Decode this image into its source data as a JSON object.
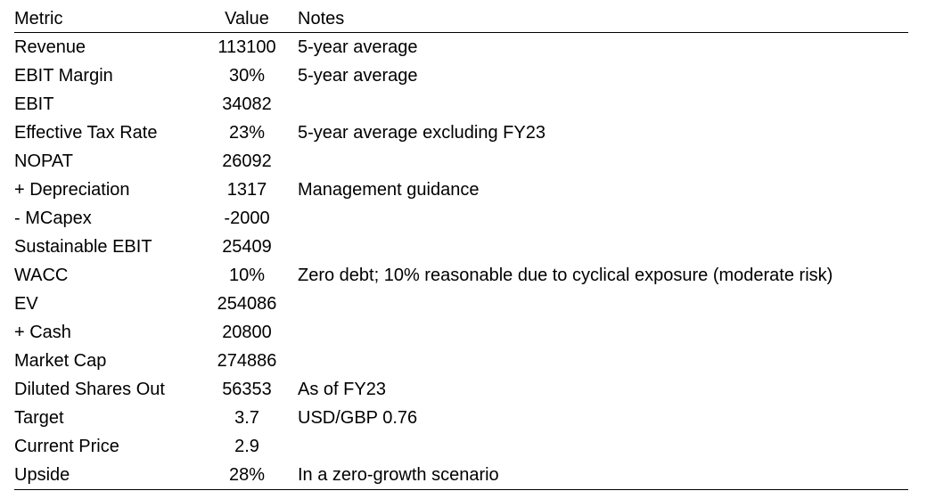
{
  "table": {
    "headers": {
      "metric": "Metric",
      "value": "Value",
      "notes": "Notes"
    },
    "rows": [
      {
        "metric": "Revenue",
        "value": "113100",
        "notes": "5-year average"
      },
      {
        "metric": "EBIT Margin",
        "value": "30%",
        "notes": "5-year average"
      },
      {
        "metric": "EBIT",
        "value": "34082",
        "notes": ""
      },
      {
        "metric": "Effective Tax Rate",
        "value": "23%",
        "notes": "5-year average excluding FY23"
      },
      {
        "metric": "NOPAT",
        "value": "26092",
        "notes": ""
      },
      {
        "metric": "+ Depreciation",
        "value": "1317",
        "notes": "Management guidance"
      },
      {
        "metric": "- MCapex",
        "value": "-2000",
        "notes": ""
      },
      {
        "metric": "Sustainable EBIT",
        "value": "25409",
        "notes": ""
      },
      {
        "metric": "WACC",
        "value": "10%",
        "notes": "Zero debt; 10% reasonable due to cyclical exposure (moderate risk)"
      },
      {
        "metric": "EV",
        "value": "254086",
        "notes": ""
      },
      {
        "metric": "+ Cash",
        "value": "20800",
        "notes": ""
      },
      {
        "metric": "Market Cap",
        "value": "274886",
        "notes": ""
      },
      {
        "metric": "Diluted Shares Out",
        "value": "56353",
        "notes": "As of FY23"
      },
      {
        "metric": "Target",
        "value": "3.7",
        "notes": "USD/GBP 0.76"
      },
      {
        "metric": "Current Price",
        "value": "2.9",
        "notes": ""
      },
      {
        "metric": "Upside",
        "value": "28%",
        "notes": "In a zero-growth scenario"
      }
    ]
  }
}
